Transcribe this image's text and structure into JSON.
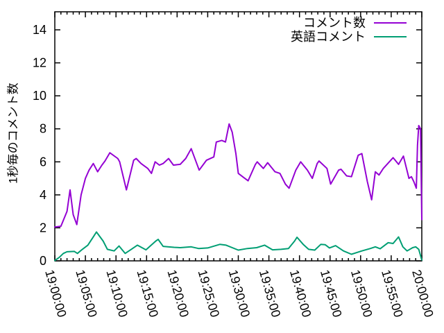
{
  "chart_data": {
    "type": "line",
    "title": "",
    "xlabel": "",
    "ylabel": "1秒毎のコメント数",
    "x_range_minutes": [
      0,
      60
    ],
    "x_major_tick_every_minutes": 5,
    "x_minor_tick_every_minutes": 1,
    "x_tick_labels": [
      "19:00:00",
      "19:05:00",
      "19:10:00",
      "19:15:00",
      "19:20:00",
      "19:25:00",
      "19:30:00",
      "19:35:00",
      "19:40:00",
      "19:45:00",
      "19:50:00",
      "19:55:00",
      "20:00:00"
    ],
    "y_ticks": [
      0,
      2,
      4,
      6,
      8,
      10,
      12,
      14
    ],
    "ylim": [
      0,
      15.1
    ],
    "grid": false,
    "legend_position": "top-right-inside",
    "axis_color": "#000000",
    "background_color": "#ffffff",
    "series": [
      {
        "id": "comment-count",
        "name": "コメント数",
        "color": "#9400d3",
        "points": [
          [
            0,
            2.05
          ],
          [
            1,
            2.1
          ],
          [
            2,
            3.0
          ],
          [
            2.5,
            4.3
          ],
          [
            3,
            2.8
          ],
          [
            3.6,
            2.2
          ],
          [
            4.3,
            4.0
          ],
          [
            5,
            5.0
          ],
          [
            5.6,
            5.5
          ],
          [
            6.3,
            5.9
          ],
          [
            7,
            5.4
          ],
          [
            7.7,
            5.8
          ],
          [
            8.2,
            6.05
          ],
          [
            9,
            6.55
          ],
          [
            10.3,
            6.2
          ],
          [
            10.6,
            6.0
          ],
          [
            11.7,
            4.3
          ],
          [
            12.9,
            6.1
          ],
          [
            13.3,
            6.2
          ],
          [
            14.1,
            5.9
          ],
          [
            15.2,
            5.6
          ],
          [
            15.8,
            5.3
          ],
          [
            16.4,
            6.0
          ],
          [
            17.1,
            5.8
          ],
          [
            17.7,
            5.9
          ],
          [
            18.6,
            6.2
          ],
          [
            19.4,
            5.8
          ],
          [
            20.5,
            5.85
          ],
          [
            21.4,
            6.2
          ],
          [
            22.3,
            6.8
          ],
          [
            23.6,
            5.5
          ],
          [
            24.8,
            6.1
          ],
          [
            26,
            6.3
          ],
          [
            26.4,
            7.2
          ],
          [
            27.3,
            7.3
          ],
          [
            27.9,
            7.2
          ],
          [
            28.5,
            8.3
          ],
          [
            29,
            7.8
          ],
          [
            29.6,
            6.5
          ],
          [
            30,
            5.3
          ],
          [
            30.7,
            5.1
          ],
          [
            31.6,
            4.85
          ],
          [
            32.8,
            5.85
          ],
          [
            33.1,
            6.0
          ],
          [
            34.1,
            5.6
          ],
          [
            34.8,
            5.95
          ],
          [
            36,
            5.4
          ],
          [
            36.8,
            5.3
          ],
          [
            37.7,
            4.65
          ],
          [
            38.3,
            4.4
          ],
          [
            39.4,
            5.5
          ],
          [
            40.2,
            6.0
          ],
          [
            41.3,
            5.5
          ],
          [
            42.1,
            5.0
          ],
          [
            42.9,
            5.9
          ],
          [
            43.2,
            6.05
          ],
          [
            44.5,
            5.6
          ],
          [
            45.1,
            4.65
          ],
          [
            46.4,
            5.5
          ],
          [
            46.8,
            5.55
          ],
          [
            47.7,
            5.15
          ],
          [
            48.5,
            5.1
          ],
          [
            49.6,
            6.4
          ],
          [
            50.2,
            6.5
          ],
          [
            51.1,
            4.8
          ],
          [
            51.8,
            3.7
          ],
          [
            52.4,
            5.4
          ],
          [
            53,
            5.2
          ],
          [
            53.7,
            5.6
          ],
          [
            55.3,
            6.25
          ],
          [
            56.2,
            5.85
          ],
          [
            57,
            6.35
          ],
          [
            57.9,
            5.0
          ],
          [
            58.3,
            5.1
          ],
          [
            58.7,
            4.8
          ],
          [
            59.1,
            4.4
          ],
          [
            59.3,
            7.0
          ],
          [
            59.5,
            8.2
          ],
          [
            59.8,
            8.0
          ],
          [
            60,
            2.5
          ]
        ]
      },
      {
        "id": "english-comments",
        "name": "英語コメント",
        "color": "#009e73",
        "points": [
          [
            0,
            0.02
          ],
          [
            0.7,
            0.2
          ],
          [
            1.4,
            0.45
          ],
          [
            2,
            0.55
          ],
          [
            3.2,
            0.57
          ],
          [
            3.7,
            0.45
          ],
          [
            4.5,
            0.7
          ],
          [
            5.4,
            0.95
          ],
          [
            6.2,
            1.4
          ],
          [
            6.8,
            1.75
          ],
          [
            7.9,
            1.2
          ],
          [
            8.6,
            0.7
          ],
          [
            9.7,
            0.6
          ],
          [
            10.5,
            0.9
          ],
          [
            11.5,
            0.45
          ],
          [
            12.5,
            0.7
          ],
          [
            13.5,
            0.95
          ],
          [
            14.9,
            0.67
          ],
          [
            16.5,
            1.2
          ],
          [
            16.9,
            1.3
          ],
          [
            17.7,
            0.88
          ],
          [
            18.5,
            0.85
          ],
          [
            19.5,
            0.82
          ],
          [
            20.5,
            0.8
          ],
          [
            22.3,
            0.85
          ],
          [
            23.5,
            0.75
          ],
          [
            25,
            0.78
          ],
          [
            27,
            1.0
          ],
          [
            28,
            0.95
          ],
          [
            30,
            0.65
          ],
          [
            31.5,
            0.75
          ],
          [
            33,
            0.8
          ],
          [
            34.3,
            0.95
          ],
          [
            35.6,
            0.67
          ],
          [
            37,
            0.7
          ],
          [
            38.2,
            0.75
          ],
          [
            39.2,
            1.2
          ],
          [
            39.6,
            1.43
          ],
          [
            40.6,
            1.0
          ],
          [
            41.5,
            0.7
          ],
          [
            42.5,
            0.65
          ],
          [
            43.5,
            1.0
          ],
          [
            44.2,
            0.98
          ],
          [
            44.9,
            0.78
          ],
          [
            45.9,
            0.92
          ],
          [
            47.2,
            0.6
          ],
          [
            48.5,
            0.4
          ],
          [
            50.2,
            0.6
          ],
          [
            51.6,
            0.75
          ],
          [
            52.4,
            0.85
          ],
          [
            53.2,
            0.73
          ],
          [
            54.5,
            1.1
          ],
          [
            55.3,
            1.05
          ],
          [
            56.2,
            1.45
          ],
          [
            56.9,
            0.85
          ],
          [
            57.6,
            0.6
          ],
          [
            58.5,
            0.8
          ],
          [
            59,
            0.85
          ],
          [
            59.5,
            0.7
          ],
          [
            60,
            0.05
          ]
        ]
      }
    ]
  }
}
